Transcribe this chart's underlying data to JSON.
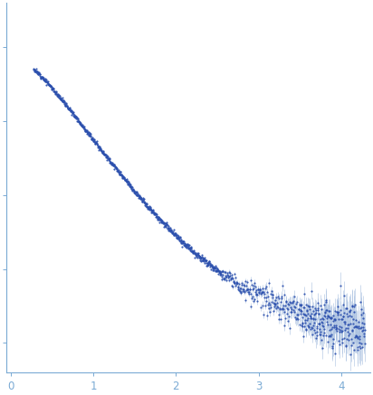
{
  "title": "",
  "xlabel": "",
  "ylabel": "",
  "xlim": [
    -0.05,
    4.35
  ],
  "ylim": [
    -0.08,
    0.92
  ],
  "ytick_positions": [
    0.0,
    0.2,
    0.4,
    0.6,
    0.8
  ],
  "xticks": [
    0,
    1,
    2,
    3,
    4
  ],
  "dot_color": "#2b4fad",
  "error_color": "#a8c0e0",
  "background": "#ffffff",
  "axis_color": "#7aaad4",
  "tick_color": "#7aaad4",
  "label_color": "#7aaad4",
  "figsize": [
    4.12,
    4.37
  ],
  "dpi": 100
}
